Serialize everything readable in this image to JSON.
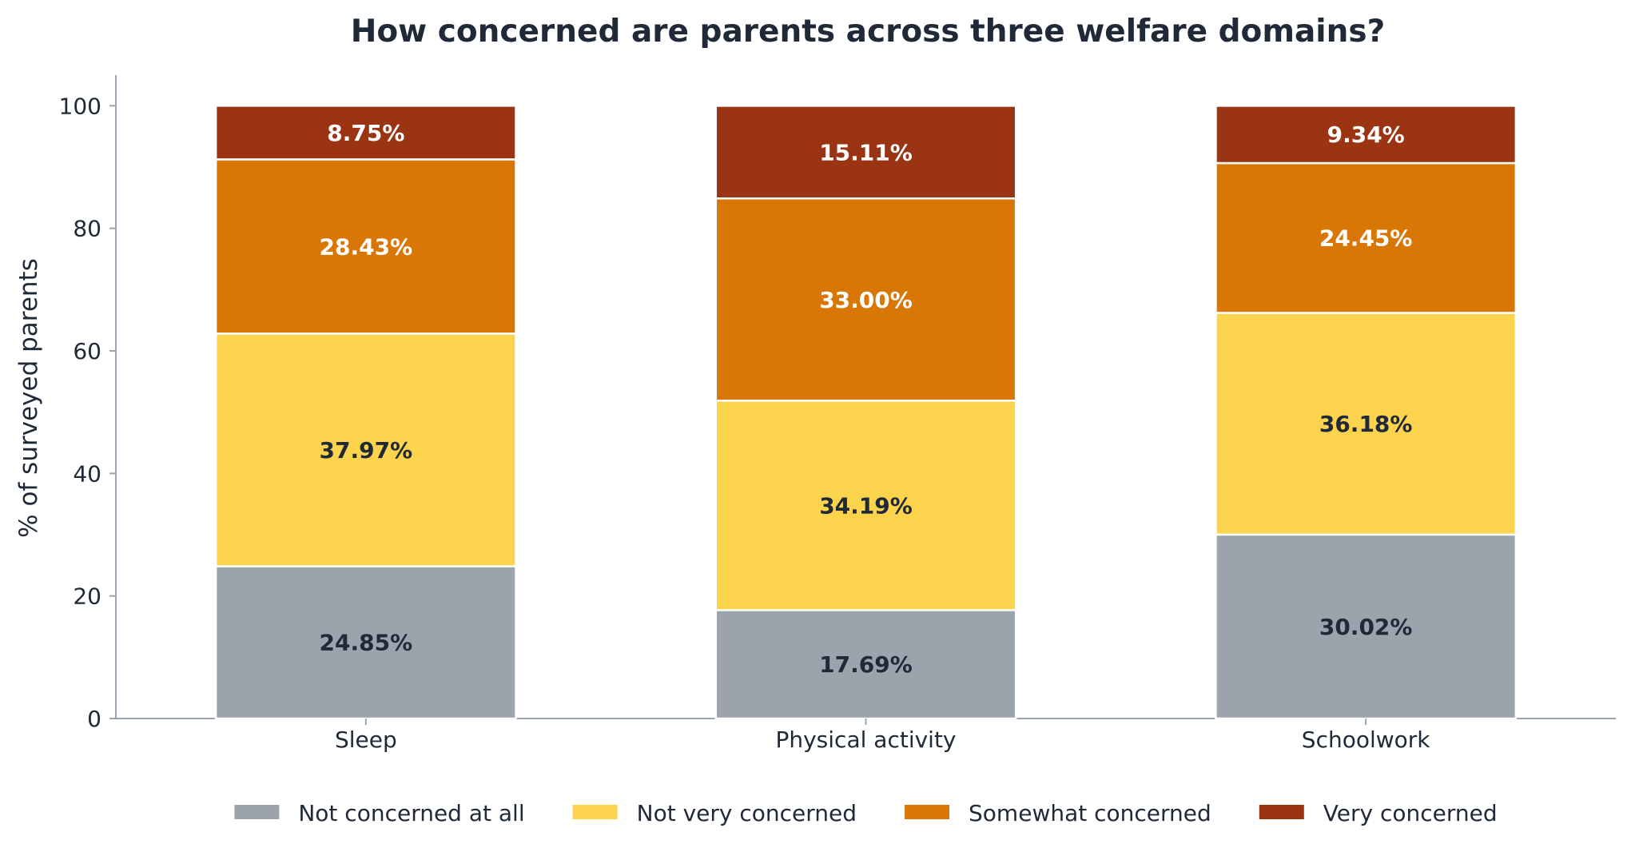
{
  "chart_data": {
    "type": "bar",
    "stacked": true,
    "title": "How concerned are parents across three welfare domains?",
    "xlabel": "",
    "ylabel": "% of surveyed parents",
    "ylim": [
      0,
      105
    ],
    "yticks": [
      0,
      20,
      40,
      60,
      80,
      100
    ],
    "grid": false,
    "legend_position": "bottom",
    "categories": [
      "Sleep",
      "Physical activity",
      "Schoolwork"
    ],
    "series": [
      {
        "name": "Not concerned at all",
        "color": "#9ca3ad",
        "label_color": "#1f2937",
        "values": [
          24.85,
          17.69,
          30.02
        ],
        "labels": [
          "24.85%",
          "17.69%",
          "30.02%"
        ]
      },
      {
        "name": "Not very concerned",
        "color": "#fcd34d",
        "label_color": "#1f2937",
        "values": [
          37.97,
          34.19,
          36.18
        ],
        "labels": [
          "37.97%",
          "34.19%",
          "36.18%"
        ]
      },
      {
        "name": "Somewhat concerned",
        "color": "#d97706",
        "label_color": "#ffffff",
        "values": [
          28.43,
          33.0,
          24.45
        ],
        "labels": [
          "28.43%",
          "33.00%",
          "24.45%"
        ]
      },
      {
        "name": "Very concerned",
        "color": "#9a3412",
        "label_color": "#ffffff",
        "values": [
          8.75,
          15.11,
          9.34
        ],
        "labels": [
          "8.75%",
          "15.11%",
          "9.34%"
        ]
      }
    ]
  }
}
